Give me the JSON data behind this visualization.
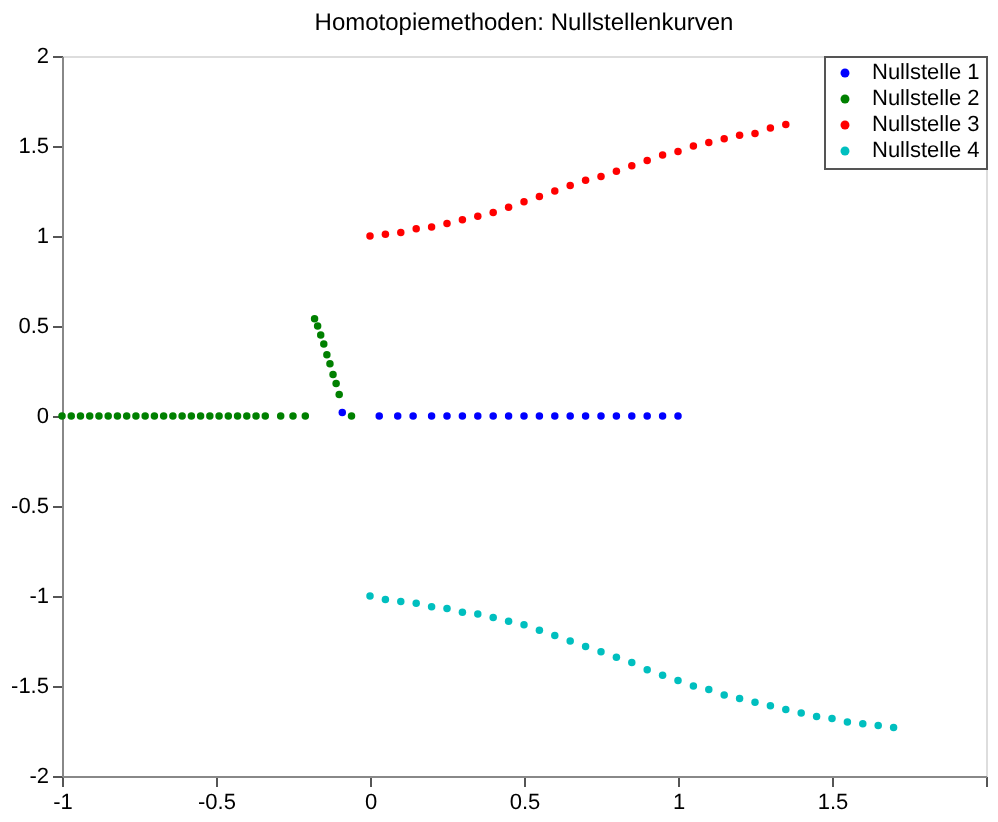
{
  "chart_data": {
    "type": "scatter",
    "title": "Homotopiemethoden: Nullstellenkurven",
    "xlim": [
      -1,
      2
    ],
    "ylim": [
      -2,
      2
    ],
    "xticks": [
      -1,
      -0.5,
      0,
      0.5,
      1,
      1.5,
      {
        "value": 2,
        "label": null
      }
    ],
    "yticks": [
      -2,
      -1.5,
      -1,
      -0.5,
      0,
      0.5,
      1,
      1.5,
      2
    ],
    "grid": false,
    "legend": "top right",
    "marker": "circle",
    "series": [
      {
        "name": "Nullstelle 1",
        "color": "#0000ff",
        "x": [
          -0.09,
          0.03,
          0.09,
          0.14,
          0.2,
          0.25,
          0.3,
          0.35,
          0.4,
          0.45,
          0.5,
          0.55,
          0.6,
          0.65,
          0.7,
          0.75,
          0.8,
          0.85,
          0.9,
          0.95,
          1.0
        ],
        "values": [
          0.02,
          0,
          0,
          0,
          0,
          0,
          0,
          0,
          0,
          0,
          0,
          0,
          0,
          0,
          0,
          0,
          0,
          0,
          0,
          0,
          0
        ]
      },
      {
        "name": "Nullstelle 2",
        "color": "#008000",
        "x": [
          -1,
          -0.97,
          -0.94,
          -0.91,
          -0.88,
          -0.85,
          -0.82,
          -0.79,
          -0.76,
          -0.73,
          -0.7,
          -0.67,
          -0.64,
          -0.61,
          -0.58,
          -0.55,
          -0.52,
          -0.49,
          -0.46,
          -0.43,
          -0.4,
          -0.37,
          -0.34,
          -0.29,
          -0.25,
          -0.21,
          -0.18,
          -0.17,
          -0.16,
          -0.15,
          -0.14,
          -0.13,
          -0.12,
          -0.11,
          -0.1,
          -0.06
        ],
        "values": [
          0,
          0,
          0,
          0,
          0,
          0,
          0,
          0,
          0,
          0,
          0,
          0,
          0,
          0,
          0,
          0,
          0,
          0,
          0,
          0,
          0,
          0,
          0,
          0,
          0,
          0,
          0.54,
          0.5,
          0.45,
          0.4,
          0.34,
          0.29,
          0.23,
          0.18,
          0.12,
          0
        ]
      },
      {
        "name": "Nullstelle 3",
        "color": "#ff0000",
        "x": [
          0,
          0.05,
          0.1,
          0.15,
          0.2,
          0.25,
          0.3,
          0.35,
          0.4,
          0.45,
          0.5,
          0.55,
          0.6,
          0.65,
          0.7,
          0.75,
          0.8,
          0.85,
          0.9,
          0.95,
          1.0,
          1.05,
          1.1,
          1.15,
          1.2,
          1.25,
          1.3,
          1.35
        ],
        "values": [
          1.0,
          1.01,
          1.02,
          1.04,
          1.05,
          1.07,
          1.09,
          1.11,
          1.13,
          1.16,
          1.19,
          1.22,
          1.25,
          1.28,
          1.31,
          1.33,
          1.36,
          1.39,
          1.42,
          1.45,
          1.47,
          1.5,
          1.52,
          1.54,
          1.56,
          1.57,
          1.6,
          1.62
        ]
      },
      {
        "name": "Nullstelle 4",
        "color": "#00bfbf",
        "x": [
          0,
          0.05,
          0.1,
          0.15,
          0.2,
          0.25,
          0.3,
          0.35,
          0.4,
          0.45,
          0.5,
          0.55,
          0.6,
          0.65,
          0.7,
          0.75,
          0.8,
          0.85,
          0.9,
          0.95,
          1.0,
          1.05,
          1.1,
          1.15,
          1.2,
          1.25,
          1.3,
          1.35,
          1.4,
          1.45,
          1.5,
          1.55,
          1.6,
          1.65,
          1.7
        ],
        "values": [
          -1.0,
          -1.02,
          -1.03,
          -1.04,
          -1.06,
          -1.07,
          -1.09,
          -1.1,
          -1.12,
          -1.14,
          -1.16,
          -1.19,
          -1.22,
          -1.25,
          -1.28,
          -1.31,
          -1.34,
          -1.37,
          -1.41,
          -1.44,
          -1.47,
          -1.5,
          -1.52,
          -1.55,
          -1.57,
          -1.59,
          -1.61,
          -1.63,
          -1.65,
          -1.67,
          -1.68,
          -1.7,
          -1.71,
          -1.72,
          -1.73
        ]
      }
    ]
  }
}
